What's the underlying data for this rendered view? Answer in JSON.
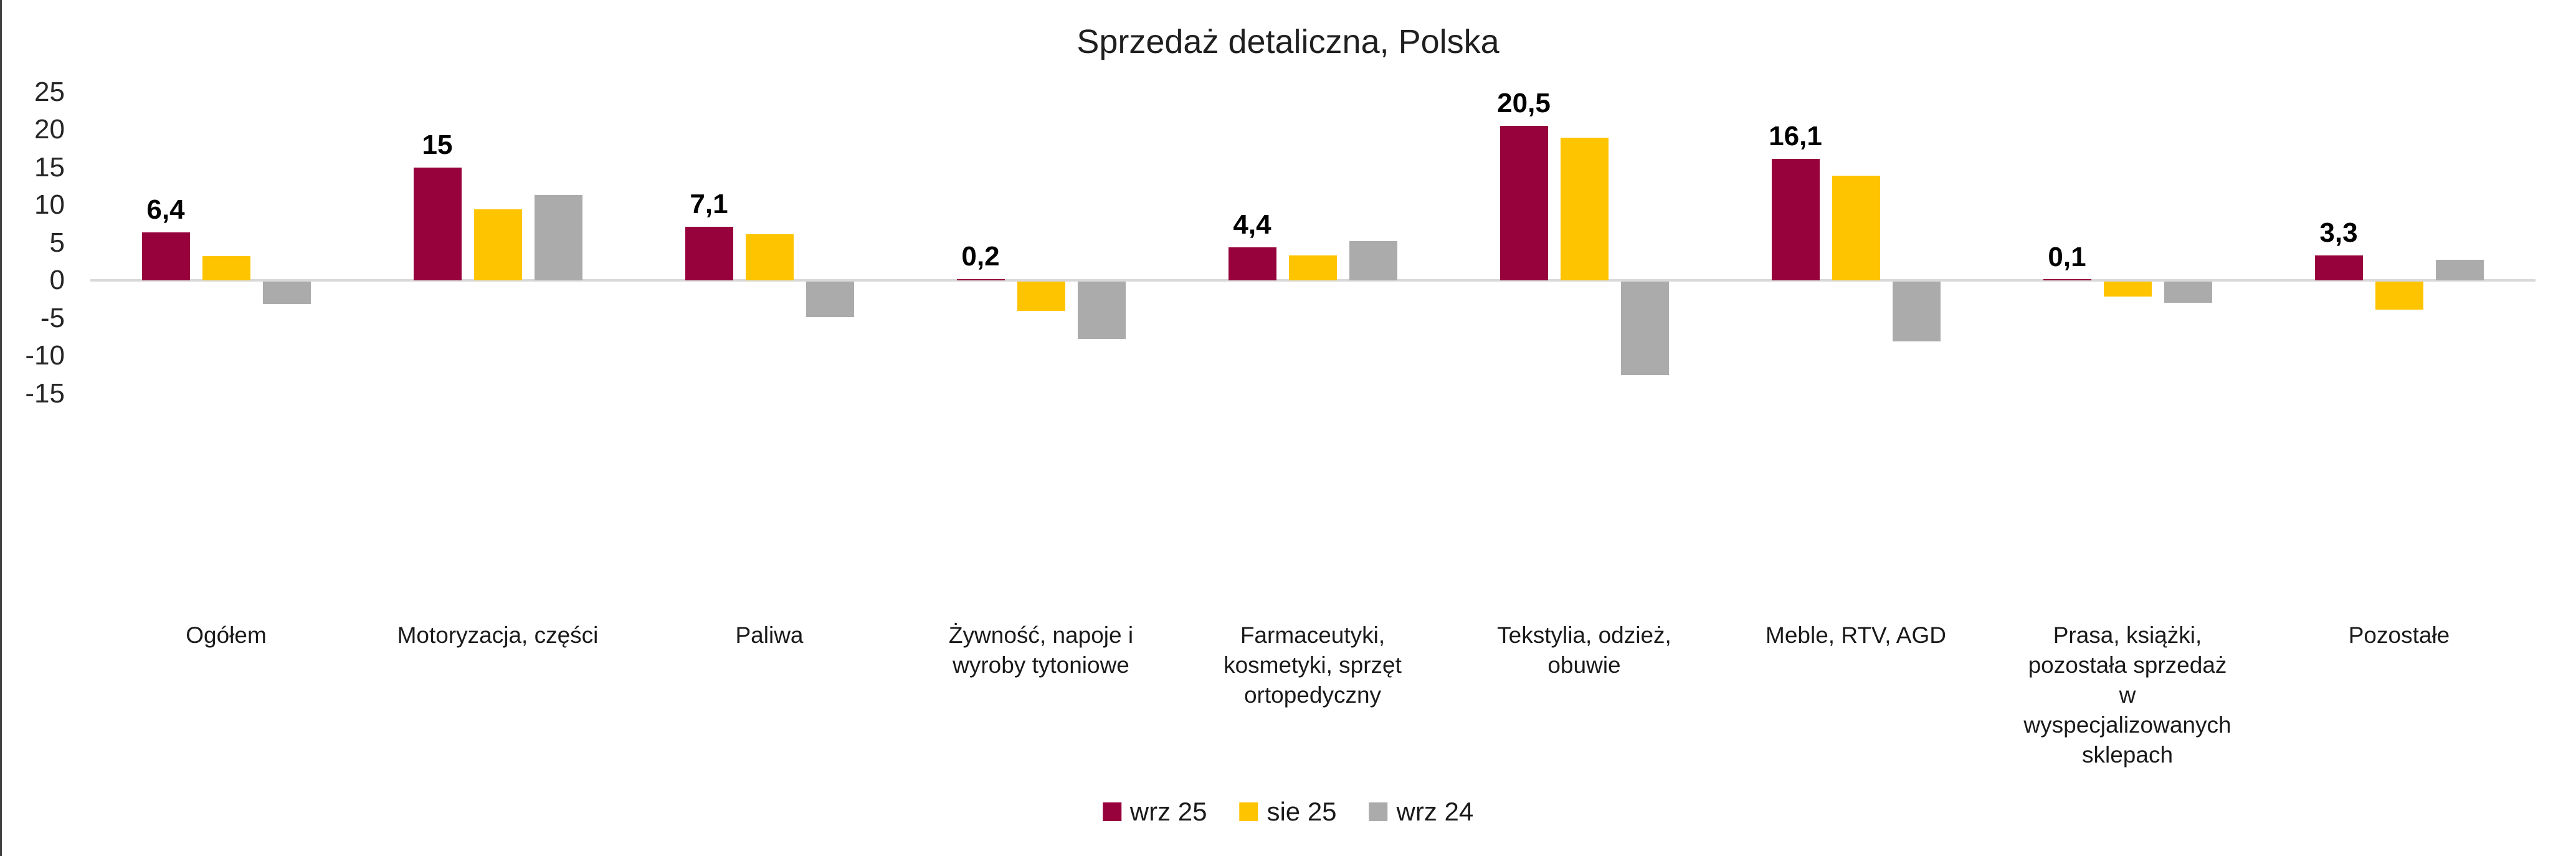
{
  "title": "Sprzedaż detaliczna, Polska",
  "y_axis": {
    "ticks": [
      25,
      20,
      15,
      10,
      5,
      0,
      -5,
      -10,
      -15
    ],
    "min": -15,
    "max": 25
  },
  "colors": {
    "series_wrz25": "#97023C",
    "series_sie25": "#FFC400",
    "series_wrz24": "#ABABAB",
    "zero_line": "#D9D9D9",
    "left_border": "#3F3F3F",
    "text": "#1A1A1A"
  },
  "chart_data": {
    "type": "bar",
    "title": "Sprzedaż detaliczna, Polska",
    "categories": [
      "Ogółem",
      "Motoryzacja, części",
      "Paliwa",
      "Żywność, napoje i\nwyroby tytoniowe",
      "Farmaceutyki,\nkosmetyki, sprzęt\nortopedyczny",
      "Tekstylia, odzież,\nobuwie",
      "Meble, RTV, AGD",
      "Prasa, książki,\npozostała sprzedaż\nw\nwyspecjalizowanych\nsklepach",
      "Pozostałe"
    ],
    "series": [
      {
        "name": "wrz 25",
        "color": "#97023C",
        "values": [
          6.4,
          15,
          7.1,
          0.2,
          4.4,
          20.5,
          16.1,
          0.1,
          3.3
        ],
        "labels": [
          "6,4",
          "15",
          "7,1",
          "0,2",
          "4,4",
          "20,5",
          "16,1",
          "0,1",
          "3,3"
        ]
      },
      {
        "name": "sie 25",
        "color": "#FFC400",
        "values": [
          3.2,
          9.4,
          6.1,
          -3.9,
          3.3,
          18.9,
          13.9,
          -2.0,
          -3.7
        ]
      },
      {
        "name": "wrz 24",
        "color": "#ABABAB",
        "values": [
          -3.0,
          11.3,
          -4.7,
          -7.6,
          5.2,
          -12.4,
          -7.9,
          -2.8,
          2.7
        ]
      }
    ],
    "ylim": [
      -15,
      25
    ],
    "grid": false,
    "data_labels_series": "wrz 25",
    "legend_position": "bottom"
  }
}
